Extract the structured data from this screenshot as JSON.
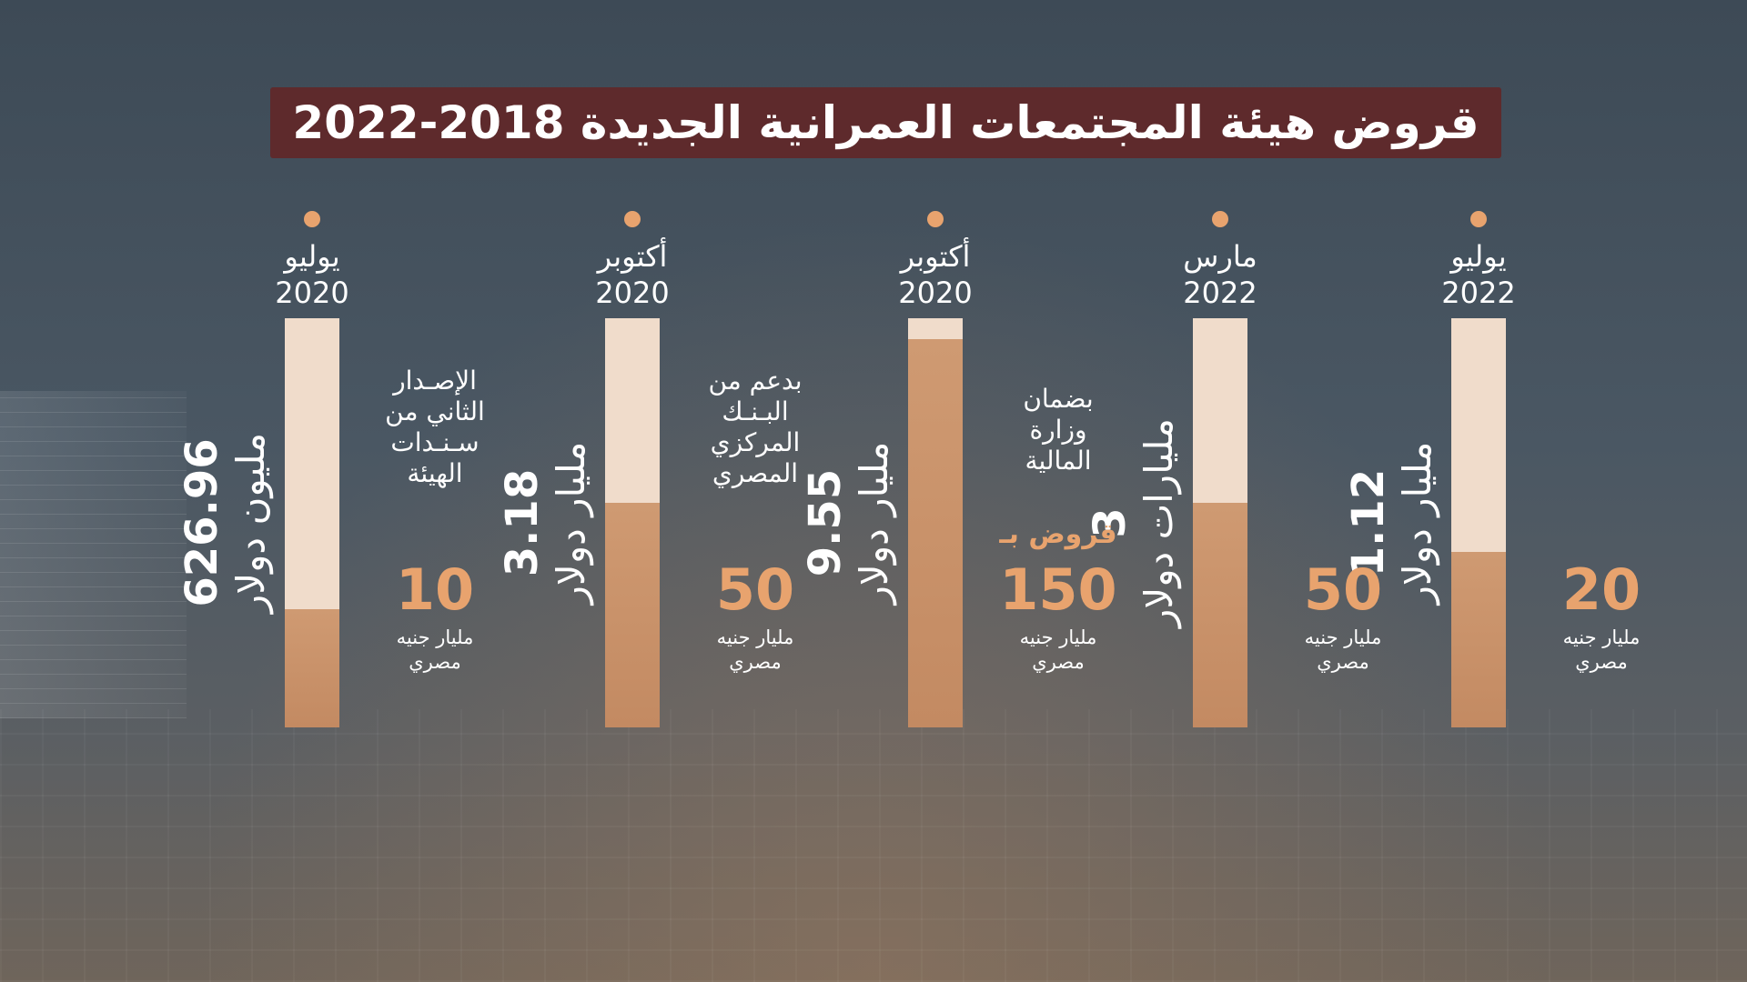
{
  "title": "قروض هيئة المجتمعات العمرانية الجديدة 2018-2022",
  "colors": {
    "accent": "#e8a36e",
    "bar_fill": "#c9936a",
    "bar_track": "#f0dccb",
    "title_bg": "#5e2a2c"
  },
  "chart_data": {
    "type": "bar",
    "title": "قروض هيئة المجتمعات العمرانية الجديدة 2018-2022",
    "categories": [
      "يوليو 2022",
      "مارس 2022",
      "أكتوبر 2020",
      "أكتوبر 2020",
      "يوليو 2020"
    ],
    "items": [
      {
        "month": "يوليو",
        "year": "2022",
        "usd_value": "1.12",
        "usd_unit": "مليار دولار",
        "note": "",
        "prefix": "",
        "egp_value": "20",
        "egp_unit_line1": "مليار جنيه",
        "egp_unit_line2": "مصري",
        "fill": 0.43
      },
      {
        "month": "مارس",
        "year": "2022",
        "usd_value": "3",
        "usd_unit": "مليارات دولار",
        "note": "",
        "prefix": "",
        "egp_value": "50",
        "egp_unit_line1": "مليار جنيه",
        "egp_unit_line2": "مصري",
        "fill": 0.55
      },
      {
        "month": "أكتوبر",
        "year": "2020",
        "usd_value": "9.55",
        "usd_unit": "مليار دولار",
        "note": "بضمان\nوزارة\nالمالية",
        "prefix": "قروض بـ",
        "egp_value": "150",
        "egp_unit_line1": "مليار جنيه",
        "egp_unit_line2": "مصري",
        "fill": 0.95
      },
      {
        "month": "أكتوبر",
        "year": "2020",
        "usd_value": "3.18",
        "usd_unit": "مليار دولار",
        "note": "بدعم من\nالبـنـك\nالمركزي\nالمصري",
        "prefix": "",
        "egp_value": "50",
        "egp_unit_line1": "مليار جنيه",
        "egp_unit_line2": "مصري",
        "fill": 0.55
      },
      {
        "month": "يوليو",
        "year": "2020",
        "usd_value": "626.96",
        "usd_unit": "مليون دولار",
        "note": "الإصـدار\nالثاني من\nسـنـدات\nالهيئة",
        "prefix": "",
        "egp_value": "10",
        "egp_unit_line1": "مليار جنيه",
        "egp_unit_line2": "مصري",
        "fill": 0.29
      }
    ]
  }
}
